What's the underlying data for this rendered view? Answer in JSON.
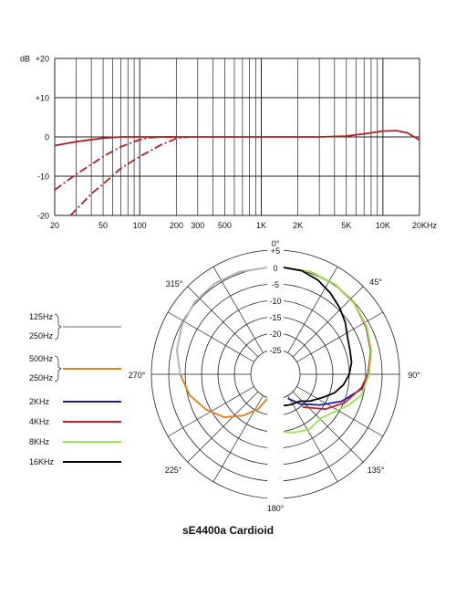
{
  "chart_data": [
    {
      "type": "line",
      "title": "",
      "xscale": "log",
      "xlim": [
        20,
        20000
      ],
      "ylim": [
        -20,
        20
      ],
      "y_unit_label": "dB",
      "y_ticks": [
        {
          "value": 20,
          "label": "+20"
        },
        {
          "value": 10,
          "label": "+10"
        },
        {
          "value": 0,
          "label": "0"
        },
        {
          "value": -10,
          "label": "-10"
        },
        {
          "value": -20,
          "label": "-20"
        }
      ],
      "x_tick_labels": [
        {
          "value": 20,
          "label": "20"
        },
        {
          "value": 50,
          "label": "50"
        },
        {
          "value": 100,
          "label": "100"
        },
        {
          "value": 200,
          "label": "200"
        },
        {
          "value": 300,
          "label": "300"
        },
        {
          "value": 500,
          "label": "500"
        },
        {
          "value": 1000,
          "label": "1K"
        },
        {
          "value": 2000,
          "label": "2K"
        },
        {
          "value": 5000,
          "label": "5K"
        },
        {
          "value": 10000,
          "label": "10K"
        },
        {
          "value": 20000,
          "label": "20KHz"
        }
      ],
      "x_gridlines": [
        20,
        30,
        40,
        50,
        60,
        70,
        80,
        90,
        100,
        200,
        300,
        400,
        500,
        600,
        700,
        800,
        900,
        1000,
        2000,
        3000,
        4000,
        5000,
        6000,
        7000,
        8000,
        9000,
        10000,
        20000
      ],
      "grid": true,
      "color": "#b01f24",
      "series": [
        {
          "style": "solid",
          "x": [
            20,
            30,
            50,
            70,
            100,
            200,
            500,
            1000,
            3000,
            5000,
            7000,
            10000,
            13000,
            16000,
            20000
          ],
          "y": [
            -2.2,
            -1.2,
            -0.3,
            0,
            0,
            0,
            0,
            0,
            0,
            0.2,
            0.8,
            1.5,
            1.6,
            1.0,
            -0.8
          ]
        },
        {
          "style": "dash-dot",
          "x": [
            20,
            30,
            40,
            50,
            70,
            100,
            120,
            150,
            200
          ],
          "y": [
            -13.5,
            -9.5,
            -7,
            -5,
            -2.5,
            -0.7,
            -0.2,
            0,
            0
          ]
        },
        {
          "style": "dash-dot",
          "x": [
            27,
            40,
            50,
            70,
            100,
            150,
            200,
            250
          ],
          "y": [
            -20,
            -14.5,
            -12,
            -8,
            -5,
            -2,
            -0.4,
            0
          ]
        }
      ]
    },
    {
      "type": "polar",
      "title": "sE4400a  Cardioid",
      "r_ticks": [
        "+5",
        "0",
        "-5",
        "-10",
        "-15",
        "-20",
        "-25"
      ],
      "angle_labels": [
        {
          "deg": 0,
          "label": "0°"
        },
        {
          "deg": 45,
          "label": "45°"
        },
        {
          "deg": 90,
          "label": "90°"
        },
        {
          "deg": 135,
          "label": "135°"
        },
        {
          "deg": 180,
          "label": "180°"
        },
        {
          "deg": 225,
          "label": "225°"
        },
        {
          "deg": 270,
          "label": "270°"
        },
        {
          "deg": 315,
          "label": "315°"
        }
      ],
      "legend": [
        {
          "labels": [
            "125Hz",
            "250Hz"
          ],
          "color": "#b3b3b3",
          "bracket": true
        },
        {
          "labels": [
            "500Hz",
            "250Hz"
          ],
          "color": "#d8862e",
          "bracket": true
        },
        {
          "labels": [
            "2KHz"
          ],
          "color": "#1c1c9c"
        },
        {
          "labels": [
            "4KHz"
          ],
          "color": "#c41e2e"
        },
        {
          "labels": [
            "8KHz"
          ],
          "color": "#9be34f"
        },
        {
          "labels": [
            "16KHz"
          ],
          "color": "#000000"
        }
      ],
      "series": [
        {
          "name": "125Hz / 250Hz",
          "color": "#b3b3b3",
          "points": [
            [
              0,
              0
            ],
            [
              15,
              -0.2
            ],
            [
              30,
              -0.6
            ],
            [
              45,
              -1.3
            ],
            [
              60,
              -2.5
            ],
            [
              75,
              -4
            ],
            [
              90,
              -6
            ]
          ]
        },
        {
          "name": "500Hz / 250Hz",
          "color": "#d8862e",
          "points": [
            [
              90,
              -6
            ],
            [
              105,
              -8
            ],
            [
              120,
              -11
            ],
            [
              135,
              -14
            ],
            [
              150,
              -18
            ],
            [
              165,
              -21.5
            ],
            [
              180,
              -25
            ]
          ]
        },
        {
          "name": "2KHz",
          "color": "#1c1c9c",
          "points": [
            [
              0,
              0
            ],
            [
              15,
              -0.3
            ],
            [
              30,
              -1
            ],
            [
              45,
              -2
            ],
            [
              60,
              -3.5
            ],
            [
              75,
              -5
            ],
            [
              90,
              -6.5
            ],
            [
              100,
              -8
            ],
            [
              115,
              -13
            ],
            [
              130,
              -18
            ],
            [
              150,
              -22
            ],
            [
              170,
              -25
            ]
          ]
        },
        {
          "name": "4KHz",
          "color": "#c41e2e",
          "points": [
            [
              0,
              0
            ],
            [
              15,
              -0.3
            ],
            [
              30,
              -1
            ],
            [
              45,
              -2
            ],
            [
              60,
              -3.5
            ],
            [
              75,
              -5
            ],
            [
              90,
              -6.8
            ],
            [
              100,
              -8.5
            ],
            [
              115,
              -12
            ],
            [
              130,
              -16
            ],
            [
              150,
              -21
            ]
          ]
        },
        {
          "name": "8KHz",
          "color": "#9be34f",
          "points": [
            [
              0,
              0
            ],
            [
              15,
              -0.3
            ],
            [
              30,
              -1
            ],
            [
              45,
              -2
            ],
            [
              60,
              -3.3
            ],
            [
              75,
              -4.8
            ],
            [
              90,
              -6.5
            ],
            [
              105,
              -8
            ],
            [
              115,
              -10.5
            ],
            [
              125,
              -13
            ],
            [
              140,
              -15
            ],
            [
              155,
              -14
            ],
            [
              170,
              -14.5
            ],
            [
              180,
              -15
            ]
          ]
        },
        {
          "name": "16KHz",
          "color": "#000000",
          "points": [
            [
              0,
              0
            ],
            [
              10,
              -0.5
            ],
            [
              20,
              -2
            ],
            [
              30,
              -4
            ],
            [
              40,
              -6
            ],
            [
              50,
              -8
            ],
            [
              60,
              -10
            ],
            [
              70,
              -11
            ],
            [
              80,
              -11.5
            ],
            [
              90,
              -12.5
            ],
            [
              100,
              -14
            ],
            [
              110,
              -16
            ],
            [
              120,
              -18.5
            ],
            [
              135,
              -21
            ],
            [
              150,
              -23
            ],
            [
              165,
              -23
            ],
            [
              175,
              -23
            ],
            [
              180,
              -23
            ]
          ]
        }
      ]
    }
  ]
}
